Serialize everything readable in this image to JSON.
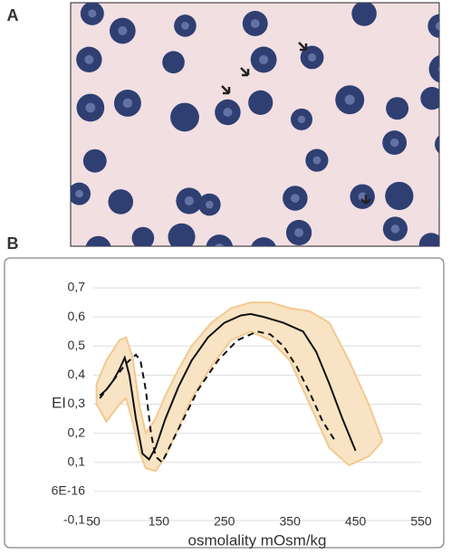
{
  "panel_labels": [
    "A",
    "B"
  ],
  "chart_data": {
    "type": "line",
    "x_label": "osmolality mOsm/kg",
    "y_label": "EI",
    "xlim": [
      50,
      550
    ],
    "xticks": [
      50,
      150,
      250,
      350,
      450,
      550
    ],
    "ylim": [
      -0.1,
      0.7
    ],
    "yticks": [
      {
        "value": -0.1,
        "label": "-0,1"
      },
      {
        "value": 6e-16,
        "label": "6E-16"
      },
      {
        "value": 0.1,
        "label": "0,1"
      },
      {
        "value": 0.2,
        "label": "0,2"
      },
      {
        "value": 0.3,
        "label": "0,3"
      },
      {
        "value": 0.4,
        "label": "0,4"
      },
      {
        "value": 0.5,
        "label": "0,5"
      },
      {
        "value": 0.6,
        "label": "0,6"
      },
      {
        "value": 0.7,
        "label": "0,7"
      }
    ],
    "grid": true,
    "band": {
      "color": "#f8e4c4",
      "edge_color": "#f2c98f",
      "x": [
        55,
        70,
        90,
        100,
        110,
        120,
        130,
        145,
        160,
        180,
        200,
        230,
        260,
        290,
        320,
        350,
        380,
        410,
        440,
        470,
        490
      ],
      "upper": [
        0.37,
        0.45,
        0.52,
        0.53,
        0.46,
        0.3,
        0.2,
        0.25,
        0.33,
        0.42,
        0.5,
        0.58,
        0.63,
        0.65,
        0.65,
        0.63,
        0.62,
        0.58,
        0.45,
        0.3,
        0.18
      ],
      "lower": [
        0.3,
        0.24,
        0.3,
        0.32,
        0.24,
        0.14,
        0.08,
        0.07,
        0.12,
        0.22,
        0.32,
        0.43,
        0.52,
        0.55,
        0.52,
        0.45,
        0.3,
        0.15,
        0.09,
        0.12,
        0.17
      ]
    },
    "series": [
      {
        "color": "#111111",
        "dash": false,
        "x": [
          60,
          70,
          80,
          90,
          98,
          105,
          115,
          125,
          135,
          145,
          160,
          180,
          200,
          225,
          250,
          275,
          290,
          310,
          340,
          370,
          390,
          410,
          430,
          450
        ],
        "values": [
          0.33,
          0.35,
          0.38,
          0.42,
          0.46,
          0.4,
          0.25,
          0.13,
          0.11,
          0.15,
          0.25,
          0.36,
          0.45,
          0.53,
          0.58,
          0.605,
          0.61,
          0.6,
          0.58,
          0.55,
          0.48,
          0.37,
          0.25,
          0.14
        ]
      },
      {
        "color": "#111111",
        "dash": true,
        "x": [
          60,
          80,
          100,
          115,
          122,
          130,
          138,
          145,
          155,
          170,
          190,
          210,
          240,
          270,
          300,
          320,
          340,
          360,
          380,
          400,
          420
        ],
        "values": [
          0.32,
          0.38,
          0.44,
          0.47,
          0.45,
          0.35,
          0.2,
          0.12,
          0.1,
          0.17,
          0.26,
          0.35,
          0.45,
          0.52,
          0.55,
          0.54,
          0.5,
          0.43,
          0.34,
          0.24,
          0.17
        ]
      }
    ]
  }
}
